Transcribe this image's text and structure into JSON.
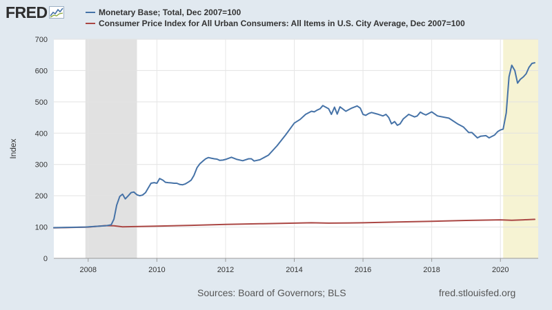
{
  "header": {
    "logo_text": "FRED"
  },
  "footer": {
    "sources": "Sources: Board of Governors; BLS",
    "site": "fred.stlouisfed.org"
  },
  "chart_data": {
    "type": "line",
    "title": "",
    "xlabel": "",
    "ylabel": "Index",
    "xlim": [
      2007.0,
      2021.1
    ],
    "ylim": [
      0,
      700
    ],
    "grid": true,
    "legend_position": "top-left",
    "x_ticks": [
      2008,
      2010,
      2012,
      2014,
      2016,
      2018,
      2020
    ],
    "y_ticks": [
      0,
      100,
      200,
      300,
      400,
      500,
      600,
      700
    ],
    "recessions": [
      {
        "start": 2007.92,
        "end": 2009.42,
        "color": "#e1e1e1"
      },
      {
        "start": 2020.08,
        "end": 2021.1,
        "color": "#f6f3d3"
      }
    ],
    "series": [
      {
        "name": "Monetary Base; Total, Dec 2007=100",
        "color": "#4572a7",
        "x": [
          2007.0,
          2007.5,
          2007.92,
          2008.5,
          2008.67,
          2008.75,
          2008.83,
          2008.92,
          2009.0,
          2009.08,
          2009.17,
          2009.25,
          2009.33,
          2009.42,
          2009.5,
          2009.58,
          2009.67,
          2009.75,
          2009.83,
          2009.92,
          2010.0,
          2010.08,
          2010.17,
          2010.25,
          2010.33,
          2010.42,
          2010.5,
          2010.58,
          2010.67,
          2010.75,
          2010.83,
          2010.92,
          2011.0,
          2011.08,
          2011.17,
          2011.25,
          2011.33,
          2011.42,
          2011.5,
          2011.58,
          2011.67,
          2011.75,
          2011.83,
          2011.92,
          2012.0,
          2012.17,
          2012.33,
          2012.5,
          2012.67,
          2012.75,
          2012.83,
          2013.0,
          2013.25,
          2013.5,
          2013.75,
          2014.0,
          2014.17,
          2014.33,
          2014.5,
          2014.58,
          2014.67,
          2014.75,
          2014.83,
          2015.0,
          2015.08,
          2015.17,
          2015.25,
          2015.33,
          2015.5,
          2015.67,
          2015.83,
          2015.92,
          2016.0,
          2016.08,
          2016.17,
          2016.25,
          2016.42,
          2016.58,
          2016.67,
          2016.75,
          2016.83,
          2016.92,
          2017.0,
          2017.08,
          2017.17,
          2017.33,
          2017.5,
          2017.58,
          2017.67,
          2017.75,
          2017.83,
          2018.0,
          2018.17,
          2018.5,
          2018.75,
          2018.92,
          2019.08,
          2019.17,
          2019.33,
          2019.42,
          2019.58,
          2019.67,
          2019.83,
          2019.92,
          2020.0,
          2020.08,
          2020.17,
          2020.25,
          2020.33,
          2020.42,
          2020.5,
          2020.58,
          2020.67,
          2020.75,
          2020.83,
          2020.92,
          2021.0
        ],
        "values": [
          98,
          99,
          100,
          104,
          107,
          125,
          170,
          198,
          205,
          190,
          200,
          210,
          212,
          203,
          200,
          202,
          210,
          225,
          240,
          242,
          240,
          255,
          250,
          243,
          242,
          241,
          240,
          240,
          236,
          235,
          238,
          244,
          250,
          265,
          290,
          302,
          310,
          318,
          322,
          320,
          318,
          317,
          313,
          314,
          316,
          323,
          316,
          312,
          318,
          318,
          311,
          315,
          330,
          360,
          395,
          432,
          444,
          460,
          470,
          468,
          474,
          478,
          488,
          478,
          460,
          483,
          461,
          484,
          470,
          480,
          487,
          480,
          460,
          457,
          463,
          466,
          461,
          455,
          460,
          450,
          430,
          437,
          425,
          430,
          445,
          460,
          452,
          455,
          467,
          462,
          458,
          468,
          455,
          448,
          430,
          420,
          402,
          402,
          385,
          390,
          392,
          385,
          394,
          405,
          410,
          413,
          465,
          580,
          617,
          600,
          560,
          572,
          580,
          590,
          610,
          623,
          625
        ],
        "note_visible_only": ""
      },
      {
        "name": "Consumer Price Index for All Urban Consumers: All Items in U.S. City Average, Dec 2007=100",
        "color": "#aa4643",
        "x": [
          2007.0,
          2008.0,
          2008.5,
          2008.75,
          2009.0,
          2009.5,
          2010.0,
          2011.0,
          2012.0,
          2013.0,
          2014.0,
          2014.5,
          2015.0,
          2016.0,
          2017.0,
          2018.0,
          2019.0,
          2020.0,
          2020.33,
          2020.67,
          2021.0
        ],
        "values": [
          97.5,
          100.0,
          104.5,
          104.0,
          100.5,
          102.0,
          103.0,
          105.5,
          108.5,
          110.5,
          112.5,
          113.5,
          112.5,
          113.5,
          116.0,
          118.5,
          121.0,
          123.0,
          121.5,
          123.0,
          124.5
        ]
      }
    ]
  }
}
